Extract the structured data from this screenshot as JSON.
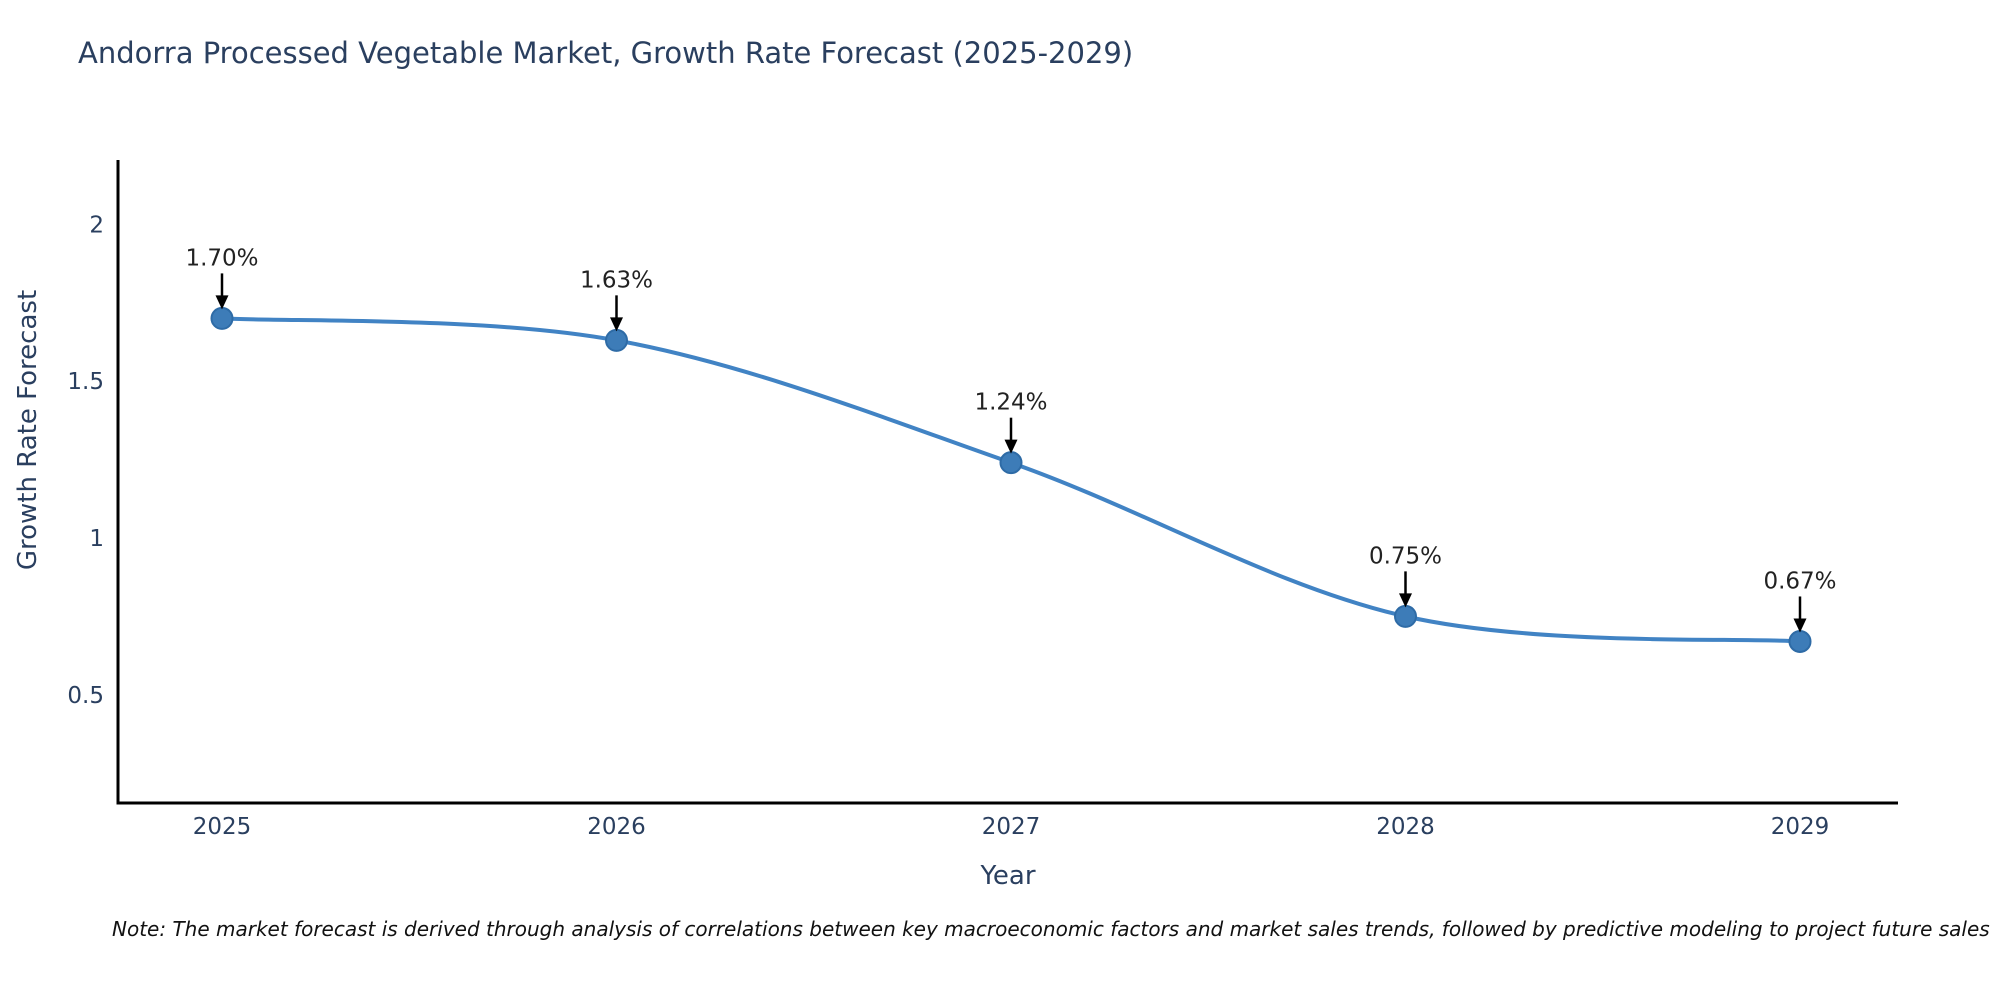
{
  "chart_data": {
    "type": "line",
    "title": "Andorra Processed Vegetable Market, Growth Rate Forecast (2025-2029)",
    "xlabel": "Year",
    "ylabel": "Growth Rate Forecast",
    "categories": [
      "2025",
      "2026",
      "2027",
      "2028",
      "2029"
    ],
    "x": [
      2025,
      2026,
      2027,
      2028,
      2029
    ],
    "series": [
      {
        "name": "Growth Rate Forecast",
        "values": [
          1.7,
          1.63,
          1.24,
          0.75,
          0.67
        ]
      }
    ],
    "annotations": [
      "1.70%",
      "1.63%",
      "1.24%",
      "0.75%",
      "0.67%"
    ],
    "yticks": [
      0.5,
      1,
      1.5,
      2
    ],
    "ylim": [
      0.155,
      2.205
    ],
    "grid": false,
    "legend": "none",
    "line_shape": "spline",
    "colors": {
      "line": "#4183c4",
      "marker": "#3d7cb8",
      "marker_edge": "#2e6ba6",
      "axis": "#000000",
      "tick_text": "#2a3f5f",
      "title_text": "#2a3f5f",
      "annotation_text": "#222222",
      "arrow": "#000000"
    },
    "note": "Note: The market forecast is derived through analysis of correlations between key macroeconomic factors and market sales trends, followed by predictive modeling to project future sales"
  }
}
